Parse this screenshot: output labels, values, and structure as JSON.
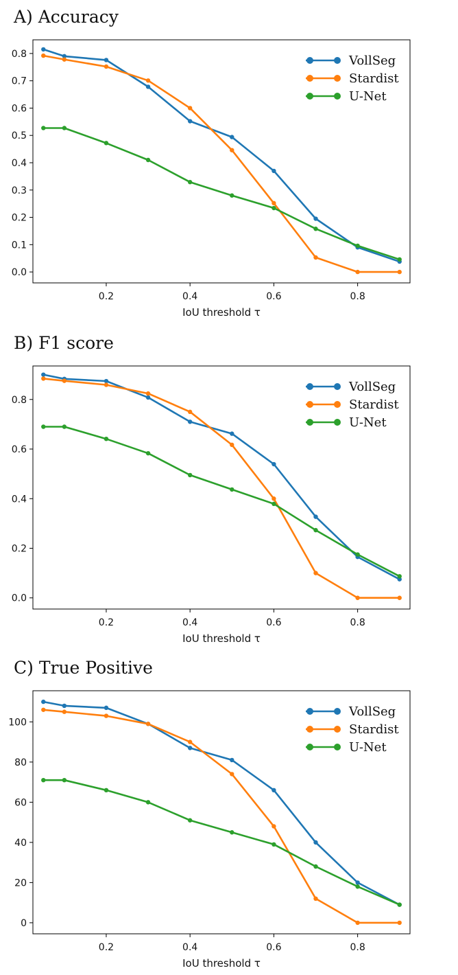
{
  "chart_data": [
    {
      "type": "line",
      "title": "A) Accuracy",
      "xlabel": "IoU threshold τ",
      "ylabel": "",
      "x": [
        0.05,
        0.1,
        0.2,
        0.3,
        0.4,
        0.5,
        0.6,
        0.7,
        0.8,
        0.9
      ],
      "xlim": [
        0.025,
        0.925
      ],
      "ylim": [
        -0.04,
        0.85
      ],
      "xticks": [
        0.2,
        0.4,
        0.6,
        0.8
      ],
      "yticks": [
        0.0,
        0.1,
        0.2,
        0.3,
        0.4,
        0.5,
        0.6,
        0.7,
        0.8
      ],
      "ytick_decimals": 1,
      "legend": "top-right",
      "series": [
        {
          "name": "VollSeg",
          "color": "#1f77b4",
          "values": [
            0.815,
            0.79,
            0.776,
            0.678,
            0.552,
            0.494,
            0.37,
            0.195,
            0.09,
            0.038
          ]
        },
        {
          "name": "Stardist",
          "color": "#ff7f0e",
          "values": [
            0.792,
            0.778,
            0.752,
            0.701,
            0.6,
            0.446,
            0.252,
            0.053,
            0.0,
            0.0
          ]
        },
        {
          "name": "U-Net",
          "color": "#2ca02c",
          "values": [
            0.527,
            0.527,
            0.472,
            0.41,
            0.329,
            0.28,
            0.234,
            0.158,
            0.096,
            0.046
          ]
        }
      ]
    },
    {
      "type": "line",
      "title": "B) F1 score",
      "xlabel": "IoU threshold τ",
      "ylabel": "",
      "x": [
        0.05,
        0.1,
        0.2,
        0.3,
        0.4,
        0.5,
        0.6,
        0.7,
        0.8,
        0.9
      ],
      "xlim": [
        0.025,
        0.925
      ],
      "ylim": [
        -0.045,
        0.935
      ],
      "xticks": [
        0.2,
        0.4,
        0.6,
        0.8
      ],
      "yticks": [
        0.0,
        0.2,
        0.4,
        0.6,
        0.8
      ],
      "ytick_decimals": 1,
      "legend": "top-right",
      "series": [
        {
          "name": "VollSeg",
          "color": "#1f77b4",
          "values": [
            0.9,
            0.883,
            0.874,
            0.808,
            0.71,
            0.662,
            0.539,
            0.327,
            0.165,
            0.075
          ]
        },
        {
          "name": "Stardist",
          "color": "#ff7f0e",
          "values": [
            0.884,
            0.875,
            0.859,
            0.824,
            0.75,
            0.617,
            0.4,
            0.1,
            0.0,
            0.0
          ]
        },
        {
          "name": "U-Net",
          "color": "#2ca02c",
          "values": [
            0.69,
            0.69,
            0.641,
            0.583,
            0.495,
            0.437,
            0.379,
            0.273,
            0.175,
            0.087
          ]
        }
      ]
    },
    {
      "type": "line",
      "title": "C) True Positive",
      "xlabel": "IoU threshold τ",
      "ylabel": "",
      "x": [
        0.05,
        0.1,
        0.2,
        0.3,
        0.4,
        0.5,
        0.6,
        0.7,
        0.8,
        0.9
      ],
      "xlim": [
        0.025,
        0.925
      ],
      "ylim": [
        -5.5,
        115.5
      ],
      "xticks": [
        0.2,
        0.4,
        0.6,
        0.8
      ],
      "yticks": [
        0,
        20,
        40,
        60,
        80,
        100
      ],
      "ytick_decimals": 0,
      "legend": "top-right",
      "series": [
        {
          "name": "VollSeg",
          "color": "#1f77b4",
          "values": [
            110,
            108,
            107,
            99,
            87,
            81,
            66,
            40,
            20,
            9
          ]
        },
        {
          "name": "Stardist",
          "color": "#ff7f0e",
          "values": [
            106,
            105,
            103,
            99,
            90,
            74,
            48,
            12,
            0,
            0
          ]
        },
        {
          "name": "U-Net",
          "color": "#2ca02c",
          "values": [
            71,
            71,
            66,
            60,
            51,
            45,
            39,
            28,
            18,
            9
          ]
        }
      ]
    }
  ]
}
